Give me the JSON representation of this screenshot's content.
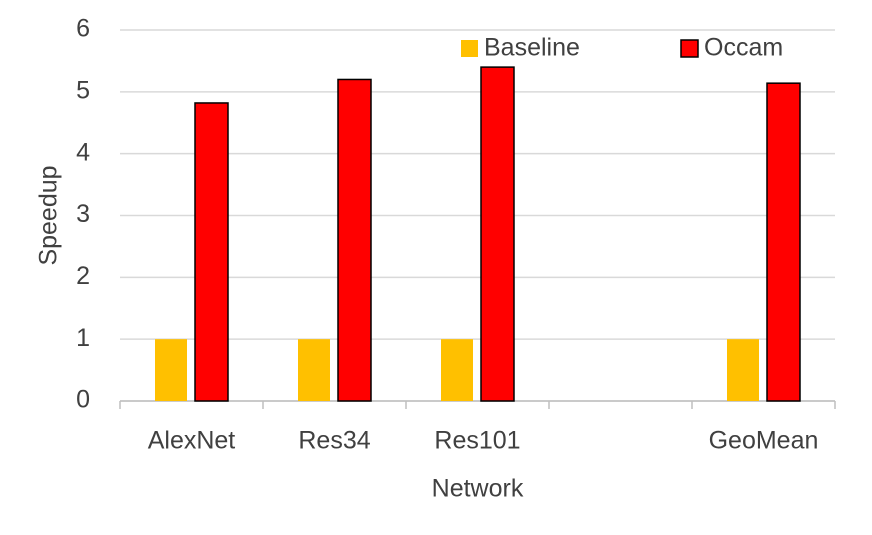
{
  "chart_data": {
    "type": "bar",
    "x_label": "Network",
    "y_label": "Speedup",
    "categories": [
      "AlexNet",
      "Res34",
      "Res101",
      null,
      "GeoMean"
    ],
    "series": [
      {
        "name": "Baseline",
        "color": "#ffc000",
        "values": [
          1,
          1,
          1,
          null,
          1
        ]
      },
      {
        "name": "Occam",
        "color": "#ff0000",
        "values": [
          4.82,
          5.2,
          5.4,
          null,
          5.14
        ]
      }
    ],
    "ylim": [
      0,
      6
    ],
    "yticks": [
      0,
      1,
      2,
      3,
      4,
      5,
      6
    ],
    "grid": true,
    "legend": "top"
  }
}
